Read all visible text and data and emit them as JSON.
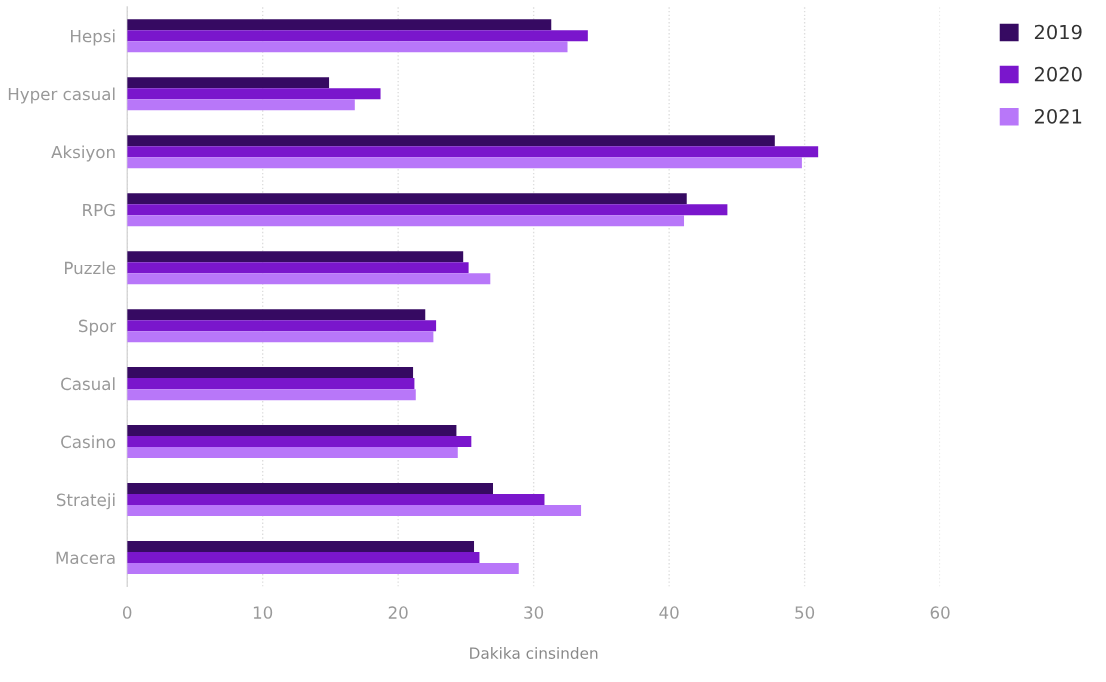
{
  "chart_data": {
    "type": "bar",
    "orientation": "horizontal",
    "xlabel": "Dakika cinsinden",
    "categories": [
      "Hepsi",
      "Hyper casual",
      "Aksiyon",
      "RPG",
      "Puzzle",
      "Spor",
      "Casual",
      "Casino",
      "Strateji",
      "Macera"
    ],
    "series": [
      {
        "name": "2019",
        "color": "#360a62",
        "values": [
          31.3,
          14.9,
          47.8,
          41.3,
          24.8,
          22.0,
          21.1,
          24.3,
          27.0,
          25.6
        ]
      },
      {
        "name": "2020",
        "color": "#7a16cc",
        "values": [
          34.0,
          18.7,
          51.0,
          44.3,
          25.2,
          22.8,
          21.2,
          25.4,
          30.8,
          26.0
        ]
      },
      {
        "name": "2021",
        "color": "#b877f9",
        "values": [
          32.5,
          16.8,
          49.8,
          41.1,
          26.8,
          22.6,
          21.3,
          24.4,
          33.5,
          28.9
        ]
      }
    ],
    "xlim": [
      0,
      60
    ],
    "xticks": [
      0,
      10,
      20,
      30,
      40,
      50,
      60
    ],
    "grid": "x",
    "legend": "top right"
  }
}
